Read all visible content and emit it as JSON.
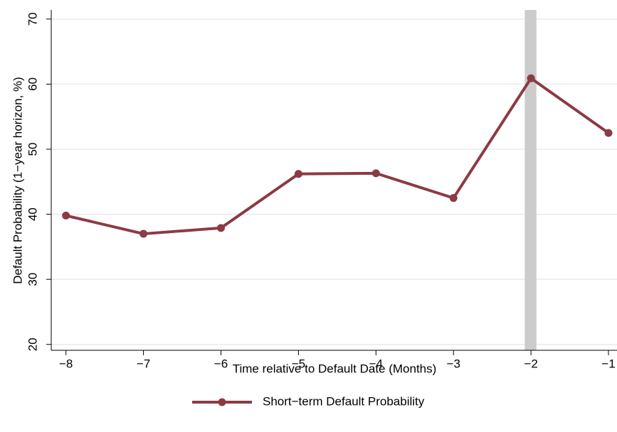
{
  "chart_data": {
    "type": "line",
    "x_label": "Time relative to Default Date (Months)",
    "y_label": "Default Probability (1−year horizon, %)",
    "x": [
      -8,
      -7,
      -6,
      -5,
      -4,
      -3,
      -2,
      -1
    ],
    "series": [
      {
        "name": "Short−term Default Probability",
        "color": "#8c3a44",
        "values": [
          39.8,
          37.0,
          37.9,
          46.2,
          46.3,
          42.5,
          60.9,
          52.5
        ]
      }
    ],
    "highlight": {
      "xlim": [
        -2.08,
        -1.93
      ],
      "color": "#cccccc"
    },
    "xlim": [
      -8.19,
      -0.89
    ],
    "xticks": [
      {
        "value": -8,
        "label": "−8"
      },
      {
        "value": -7,
        "label": "−7"
      },
      {
        "value": -6,
        "label": "−6"
      },
      {
        "value": -5,
        "label": "−5"
      },
      {
        "value": -4,
        "label": "−4"
      },
      {
        "value": -3,
        "label": "−3"
      },
      {
        "value": -2,
        "label": "−2"
      },
      {
        "value": -1,
        "label": "−1"
      }
    ],
    "ylim": [
      19.1,
      71.4
    ],
    "yticks": [
      20,
      30,
      40,
      50,
      60,
      70
    ],
    "grid": true
  }
}
